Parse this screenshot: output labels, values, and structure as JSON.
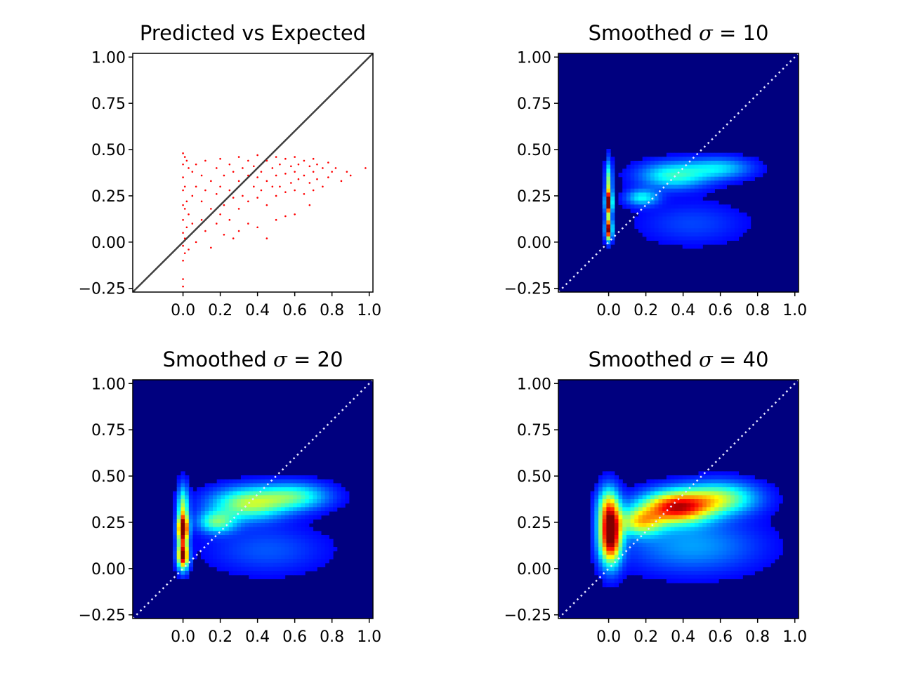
{
  "figure": {
    "rows": 2,
    "cols": 2
  },
  "chart_data": [
    {
      "type": "scatter",
      "title": "Predicted vs Expected",
      "xlabel": "",
      "ylabel": "",
      "xlim": [
        -0.27,
        1.02
      ],
      "ylim": [
        -0.27,
        1.02
      ],
      "x_ticks": [
        0.0,
        0.2,
        0.4,
        0.6,
        0.8,
        1.0
      ],
      "x_tick_labels": [
        "0.0",
        "0.2",
        "0.4",
        "0.6",
        "0.8",
        "1.0"
      ],
      "y_ticks": [
        -0.25,
        0.0,
        0.25,
        0.5,
        0.75,
        1.0
      ],
      "y_tick_labels": [
        "−0.25",
        "0.00",
        "0.25",
        "0.50",
        "0.75",
        "1.00"
      ],
      "grid": false,
      "marker_color": "#ff0000",
      "reference_line": {
        "x": [
          -0.27,
          1.02
        ],
        "y": [
          -0.27,
          1.02
        ],
        "style": "solid",
        "color": "#404040"
      },
      "series": [
        {
          "points": [
            [
              0.0,
              0.48
            ],
            [
              0.0,
              0.42
            ],
            [
              0.0,
              0.35
            ],
            [
              0.0,
              0.28
            ],
            [
              0.0,
              0.2
            ],
            [
              0.0,
              0.12
            ],
            [
              0.0,
              0.05
            ],
            [
              0.0,
              -0.02
            ],
            [
              0.0,
              -0.1
            ],
            [
              0.0,
              -0.2
            ],
            [
              0.0,
              -0.24
            ],
            [
              0.01,
              0.46
            ],
            [
              0.01,
              0.3
            ],
            [
              0.01,
              0.18
            ],
            [
              0.01,
              0.02
            ],
            [
              0.01,
              -0.06
            ],
            [
              0.02,
              0.44
            ],
            [
              0.02,
              0.22
            ],
            [
              0.02,
              0.08
            ],
            [
              0.03,
              0.4
            ],
            [
              0.03,
              0.15
            ],
            [
              0.03,
              -0.04
            ],
            [
              0.05,
              0.38
            ],
            [
              0.05,
              0.25
            ],
            [
              0.05,
              0.1
            ],
            [
              0.07,
              0.42
            ],
            [
              0.07,
              0.3
            ],
            [
              0.07,
              0.0
            ],
            [
              0.1,
              0.36
            ],
            [
              0.1,
              0.22
            ],
            [
              0.1,
              0.12
            ],
            [
              0.12,
              0.44
            ],
            [
              0.12,
              0.28
            ],
            [
              0.12,
              0.06
            ],
            [
              0.15,
              0.33
            ],
            [
              0.15,
              0.18
            ],
            [
              0.15,
              -0.03
            ],
            [
              0.18,
              0.4
            ],
            [
              0.18,
              0.26
            ],
            [
              0.18,
              0.1
            ],
            [
              0.2,
              0.45
            ],
            [
              0.2,
              0.3
            ],
            [
              0.2,
              0.15
            ],
            [
              0.22,
              0.36
            ],
            [
              0.22,
              0.2
            ],
            [
              0.22,
              0.04
            ],
            [
              0.25,
              0.42
            ],
            [
              0.25,
              0.28
            ],
            [
              0.25,
              0.12
            ],
            [
              0.27,
              0.38
            ],
            [
              0.27,
              0.24
            ],
            [
              0.27,
              0.02
            ],
            [
              0.3,
              0.46
            ],
            [
              0.3,
              0.33
            ],
            [
              0.3,
              0.18
            ],
            [
              0.3,
              0.06
            ],
            [
              0.32,
              0.4
            ],
            [
              0.32,
              0.25
            ],
            [
              0.35,
              0.44
            ],
            [
              0.35,
              0.36
            ],
            [
              0.35,
              0.22
            ],
            [
              0.35,
              0.1
            ],
            [
              0.38,
              0.41
            ],
            [
              0.38,
              0.3
            ],
            [
              0.4,
              0.47
            ],
            [
              0.4,
              0.35
            ],
            [
              0.4,
              0.24
            ],
            [
              0.4,
              0.08
            ],
            [
              0.42,
              0.38
            ],
            [
              0.42,
              0.28
            ],
            [
              0.45,
              0.44
            ],
            [
              0.45,
              0.33
            ],
            [
              0.45,
              0.2
            ],
            [
              0.45,
              0.02
            ],
            [
              0.48,
              0.4
            ],
            [
              0.48,
              0.3
            ],
            [
              0.5,
              0.46
            ],
            [
              0.5,
              0.36
            ],
            [
              0.5,
              0.25
            ],
            [
              0.5,
              0.12
            ],
            [
              0.52,
              0.42
            ],
            [
              0.52,
              0.3
            ],
            [
              0.55,
              0.45
            ],
            [
              0.55,
              0.37
            ],
            [
              0.55,
              0.27
            ],
            [
              0.55,
              0.14
            ],
            [
              0.58,
              0.41
            ],
            [
              0.58,
              0.32
            ],
            [
              0.6,
              0.46
            ],
            [
              0.6,
              0.38
            ],
            [
              0.6,
              0.28
            ],
            [
              0.6,
              0.15
            ],
            [
              0.62,
              0.42
            ],
            [
              0.62,
              0.34
            ],
            [
              0.65,
              0.44
            ],
            [
              0.65,
              0.36
            ],
            [
              0.65,
              0.26
            ],
            [
              0.68,
              0.41
            ],
            [
              0.68,
              0.32
            ],
            [
              0.68,
              0.2
            ],
            [
              0.7,
              0.45
            ],
            [
              0.7,
              0.38
            ],
            [
              0.7,
              0.28
            ],
            [
              0.72,
              0.42
            ],
            [
              0.72,
              0.34
            ],
            [
              0.75,
              0.4
            ],
            [
              0.75,
              0.3
            ],
            [
              0.78,
              0.43
            ],
            [
              0.78,
              0.35
            ],
            [
              0.8,
              0.38
            ],
            [
              0.82,
              0.4
            ],
            [
              0.85,
              0.33
            ],
            [
              0.88,
              0.38
            ],
            [
              0.9,
              0.36
            ],
            [
              0.98,
              0.4
            ]
          ]
        }
      ]
    },
    {
      "type": "heatmap",
      "title": "Smoothed σ = 10",
      "title_parts": [
        "Smoothed ",
        "σ",
        " = 10"
      ],
      "xlabel": "",
      "ylabel": "",
      "xlim": [
        -0.27,
        1.02
      ],
      "ylim": [
        -0.27,
        1.02
      ],
      "x_ticks": [
        0.0,
        0.2,
        0.4,
        0.6,
        0.8,
        1.0
      ],
      "x_tick_labels": [
        "0.0",
        "0.2",
        "0.4",
        "0.6",
        "0.8",
        "1.0"
      ],
      "y_ticks": [
        -0.25,
        0.0,
        0.25,
        0.5,
        0.75,
        1.0
      ],
      "y_tick_labels": [
        "−0.25",
        "0.00",
        "0.25",
        "0.50",
        "0.75",
        "1.00"
      ],
      "grid": false,
      "colormap": "jet",
      "background_color": "#00007f",
      "reference_line": {
        "x": [
          -0.27,
          1.02
        ],
        "y": [
          -0.27,
          1.02
        ],
        "style": "dotted",
        "color": "#e6e6ff"
      },
      "density_peaks": [
        {
          "x": 0.0,
          "y": 0.07,
          "intensity": 1.0,
          "sx": 0.012,
          "sy": 0.04
        },
        {
          "x": 0.0,
          "y": 0.21,
          "intensity": 1.0,
          "sx": 0.012,
          "sy": 0.04
        },
        {
          "x": 0.0,
          "y": 0.32,
          "intensity": 0.45,
          "sx": 0.012,
          "sy": 0.08
        },
        {
          "x": 0.35,
          "y": 0.36,
          "intensity": 0.35,
          "sx": 0.13,
          "sy": 0.05
        },
        {
          "x": 0.6,
          "y": 0.4,
          "intensity": 0.25,
          "sx": 0.12,
          "sy": 0.04
        },
        {
          "x": 0.18,
          "y": 0.24,
          "intensity": 0.3,
          "sx": 0.06,
          "sy": 0.03
        },
        {
          "x": 0.45,
          "y": 0.1,
          "intensity": 0.1,
          "sx": 0.2,
          "sy": 0.08
        }
      ]
    },
    {
      "type": "heatmap",
      "title": "Smoothed σ = 20",
      "title_parts": [
        "Smoothed ",
        "σ",
        " = 20"
      ],
      "xlabel": "",
      "ylabel": "",
      "xlim": [
        -0.27,
        1.02
      ],
      "ylim": [
        -0.27,
        1.02
      ],
      "x_ticks": [
        0.0,
        0.2,
        0.4,
        0.6,
        0.8,
        1.0
      ],
      "x_tick_labels": [
        "0.0",
        "0.2",
        "0.4",
        "0.6",
        "0.8",
        "1.0"
      ],
      "y_ticks": [
        -0.25,
        0.0,
        0.25,
        0.5,
        0.75,
        1.0
      ],
      "y_tick_labels": [
        "−0.25",
        "0.00",
        "0.25",
        "0.50",
        "0.75",
        "1.00"
      ],
      "grid": false,
      "colormap": "jet",
      "background_color": "#00007f",
      "reference_line": {
        "x": [
          -0.27,
          1.02
        ],
        "y": [
          -0.27,
          1.02
        ],
        "style": "dotted",
        "color": "#e6e6ff"
      },
      "density_peaks": [
        {
          "x": 0.0,
          "y": 0.07,
          "intensity": 1.0,
          "sx": 0.02,
          "sy": 0.05
        },
        {
          "x": 0.0,
          "y": 0.21,
          "intensity": 1.0,
          "sx": 0.02,
          "sy": 0.05
        },
        {
          "x": 0.0,
          "y": 0.33,
          "intensity": 0.45,
          "sx": 0.02,
          "sy": 0.08
        },
        {
          "x": 0.35,
          "y": 0.35,
          "intensity": 0.48,
          "sx": 0.14,
          "sy": 0.06
        },
        {
          "x": 0.6,
          "y": 0.39,
          "intensity": 0.35,
          "sx": 0.13,
          "sy": 0.05
        },
        {
          "x": 0.18,
          "y": 0.25,
          "intensity": 0.38,
          "sx": 0.07,
          "sy": 0.04
        },
        {
          "x": 0.45,
          "y": 0.1,
          "intensity": 0.12,
          "sx": 0.22,
          "sy": 0.09
        }
      ]
    },
    {
      "type": "heatmap",
      "title": "Smoothed σ = 40",
      "title_parts": [
        "Smoothed ",
        "σ",
        " = 40"
      ],
      "xlabel": "",
      "ylabel": "",
      "xlim": [
        -0.27,
        1.02
      ],
      "ylim": [
        -0.27,
        1.02
      ],
      "x_ticks": [
        0.0,
        0.2,
        0.4,
        0.6,
        0.8,
        1.0
      ],
      "x_tick_labels": [
        "0.0",
        "0.2",
        "0.4",
        "0.6",
        "0.8",
        "1.0"
      ],
      "y_ticks": [
        -0.25,
        0.0,
        0.25,
        0.5,
        0.75,
        1.0
      ],
      "y_tick_labels": [
        "−0.25",
        "0.00",
        "0.25",
        "0.50",
        "0.75",
        "1.00"
      ],
      "grid": false,
      "colormap": "jet",
      "background_color": "#00007f",
      "reference_line": {
        "x": [
          -0.27,
          1.02
        ],
        "y": [
          -0.27,
          1.02
        ],
        "style": "dotted",
        "color": "#e6e6ff"
      },
      "density_peaks": [
        {
          "x": 0.01,
          "y": 0.17,
          "intensity": 1.0,
          "sx": 0.04,
          "sy": 0.1
        },
        {
          "x": 0.0,
          "y": 0.33,
          "intensity": 0.5,
          "sx": 0.04,
          "sy": 0.08
        },
        {
          "x": 0.36,
          "y": 0.33,
          "intensity": 0.85,
          "sx": 0.13,
          "sy": 0.06
        },
        {
          "x": 0.6,
          "y": 0.38,
          "intensity": 0.45,
          "sx": 0.14,
          "sy": 0.06
        },
        {
          "x": 0.17,
          "y": 0.25,
          "intensity": 0.5,
          "sx": 0.08,
          "sy": 0.05
        },
        {
          "x": 0.45,
          "y": 0.12,
          "intensity": 0.2,
          "sx": 0.25,
          "sy": 0.1
        }
      ]
    }
  ]
}
